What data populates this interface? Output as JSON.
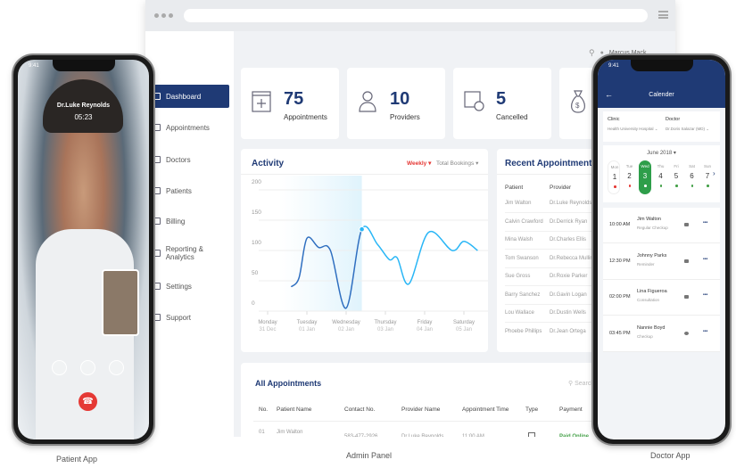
{
  "captions": {
    "patient": "Patient App",
    "admin": "Admin Panel",
    "doctor": "Doctor App"
  },
  "admin": {
    "user": "Marcus Mack",
    "sidebar": [
      {
        "label": "Dashboard",
        "icon": "home-icon"
      },
      {
        "label": "Appointments",
        "icon": "calendar-icon"
      },
      {
        "label": "Doctors",
        "icon": "doctor-icon"
      },
      {
        "label": "Patients",
        "icon": "patient-icon"
      },
      {
        "label": "Billing",
        "icon": "billing-icon"
      },
      {
        "label": "Reporting & Analytics",
        "icon": "report-icon"
      },
      {
        "label": "Settings",
        "icon": "gear-icon"
      },
      {
        "label": "Support",
        "icon": "support-icon"
      }
    ],
    "stats": [
      {
        "value": "75",
        "label": "Appointments"
      },
      {
        "value": "10",
        "label": "Providers"
      },
      {
        "value": "5",
        "label": "Cancelled"
      }
    ],
    "activity": {
      "title": "Activity",
      "period": "Weekly",
      "metric": "Total Bookings"
    },
    "recent": {
      "title": "Recent Appointments",
      "headers": [
        "Patient",
        "Provider"
      ],
      "rows": [
        [
          "Jim Walton",
          "Dr.Luke Reynolds"
        ],
        [
          "Calvin Crawford",
          "Dr.Derrick Ryan"
        ],
        [
          "Mina Walsh",
          "Dr.Charles Ellis"
        ],
        [
          "Tom Swanson",
          "Dr.Rebecca Mullins"
        ],
        [
          "Sue Gross",
          "Dr.Roxie Parker"
        ],
        [
          "Barry Sanchez",
          "Dr.Gavin Logan"
        ],
        [
          "Lou Wallace",
          "Dr.Dustin Wells"
        ],
        [
          "Phoebe Phillips",
          "Dr.Jean Ortega"
        ]
      ]
    },
    "all": {
      "title": "All Appointments",
      "search_placeholder": "Search",
      "headers": [
        "No.",
        "Patient Name",
        "Contact No.",
        "Provider Name",
        "Appointment Time",
        "Type",
        "Payment"
      ],
      "row": [
        "01",
        "Jim Walton",
        "583-477-2926",
        "Dr.Luke Reynolds",
        "11:00 AM",
        "",
        "Paid Online"
      ]
    }
  },
  "chart_data": {
    "type": "line",
    "title": "Activity",
    "ylim": [
      0,
      200
    ],
    "yticks": [
      "200",
      "150",
      "100",
      "50",
      "0"
    ],
    "categories": [
      {
        "day": "Monday",
        "date": "31 Dec"
      },
      {
        "day": "Tuesday",
        "date": "01 Jan"
      },
      {
        "day": "Wednesday",
        "date": "02 Jan"
      },
      {
        "day": "Thursday",
        "date": "03 Jan"
      },
      {
        "day": "Friday",
        "date": "04 Jan"
      },
      {
        "day": "Saturday",
        "date": "05 Jan"
      }
    ],
    "x": [
      0.6,
      0.8,
      1.0,
      1.3,
      1.6,
      2.0,
      2.4,
      2.8,
      3.1,
      3.3,
      3.6,
      4.1,
      4.7,
      5.0,
      5.35
    ],
    "y": [
      40,
      55,
      120,
      105,
      100,
      5,
      135,
      110,
      85,
      88,
      45,
      130,
      100,
      115,
      100
    ],
    "highlight_index": 6,
    "colors": {
      "before": "#2f6fc0",
      "after": "#29b6f6"
    }
  },
  "patient_app": {
    "time": "9:41",
    "doctor": "Dr.Luke Reynolds",
    "duration": "05:23"
  },
  "doctor_app": {
    "time": "9:41",
    "title": "Calender",
    "clinic_label": "Clinic",
    "clinic": "Health University Hospital",
    "doctor_label": "Doctor",
    "doctor": "Dr.Doris Salazar (MD)",
    "month": "June 2018",
    "days": [
      {
        "d": "Mon",
        "n": "1",
        "dot": "#e53935"
      },
      {
        "d": "Tue",
        "n": "2",
        "dot": "#e53935"
      },
      {
        "d": "Wed",
        "n": "3",
        "dot": "#fff"
      },
      {
        "d": "Thu",
        "n": "4",
        "dot": "#43a047"
      },
      {
        "d": "Fri",
        "n": "5",
        "dot": "#43a047"
      },
      {
        "d": "Sat",
        "n": "6",
        "dot": "#43a047"
      },
      {
        "d": "Sun",
        "n": "7",
        "dot": "#43a047"
      }
    ],
    "appointments": [
      {
        "time": "10:00 AM",
        "name": "Jim Walton",
        "type": "Regular Checkup",
        "icon": "video-icon"
      },
      {
        "time": "12:30 PM",
        "name": "Johnny Parks",
        "type": "Reminder",
        "icon": "video-icon"
      },
      {
        "time": "02:00 PM",
        "name": "Lina Figueroa",
        "type": "Consultation",
        "icon": "phone-icon"
      },
      {
        "time": "03:45 PM",
        "name": "Nannie Boyd",
        "type": "Checkup",
        "icon": "chat-icon"
      }
    ]
  },
  "colors": {
    "brand": "#1f3a75",
    "selected_day": "#2e9e4a",
    "paid": "#43a047",
    "weekly": "#e53935"
  }
}
